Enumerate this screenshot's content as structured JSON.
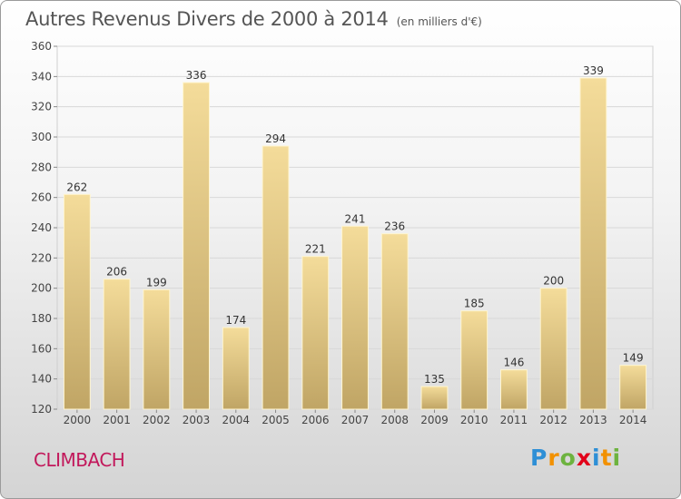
{
  "title": "Autres Revenus Divers de 2000 à 2014",
  "unit": "(en milliers d'€)",
  "place": "CLIMBACH",
  "logo": {
    "letters": [
      "P",
      "r",
      "o",
      "x",
      "i",
      "t",
      "i"
    ],
    "colors": [
      "#2e8fd6",
      "#f29100",
      "#6db33f",
      "#e2001a",
      "#2e8fd6",
      "#f29100",
      "#6db33f"
    ]
  },
  "chart_data": {
    "type": "bar",
    "categories": [
      "2000",
      "2001",
      "2002",
      "2003",
      "2004",
      "2005",
      "2006",
      "2007",
      "2008",
      "2009",
      "2010",
      "2011",
      "2012",
      "2013",
      "2014"
    ],
    "values": [
      262,
      206,
      199,
      336,
      174,
      294,
      221,
      241,
      236,
      135,
      185,
      146,
      200,
      339,
      149
    ],
    "ylim": [
      120,
      360
    ],
    "yticks": [
      120,
      140,
      160,
      180,
      200,
      220,
      240,
      260,
      280,
      300,
      320,
      340,
      360
    ],
    "grid": true,
    "bar_color_top": "#f4dc9a",
    "bar_color_bottom": "#c0a565"
  }
}
